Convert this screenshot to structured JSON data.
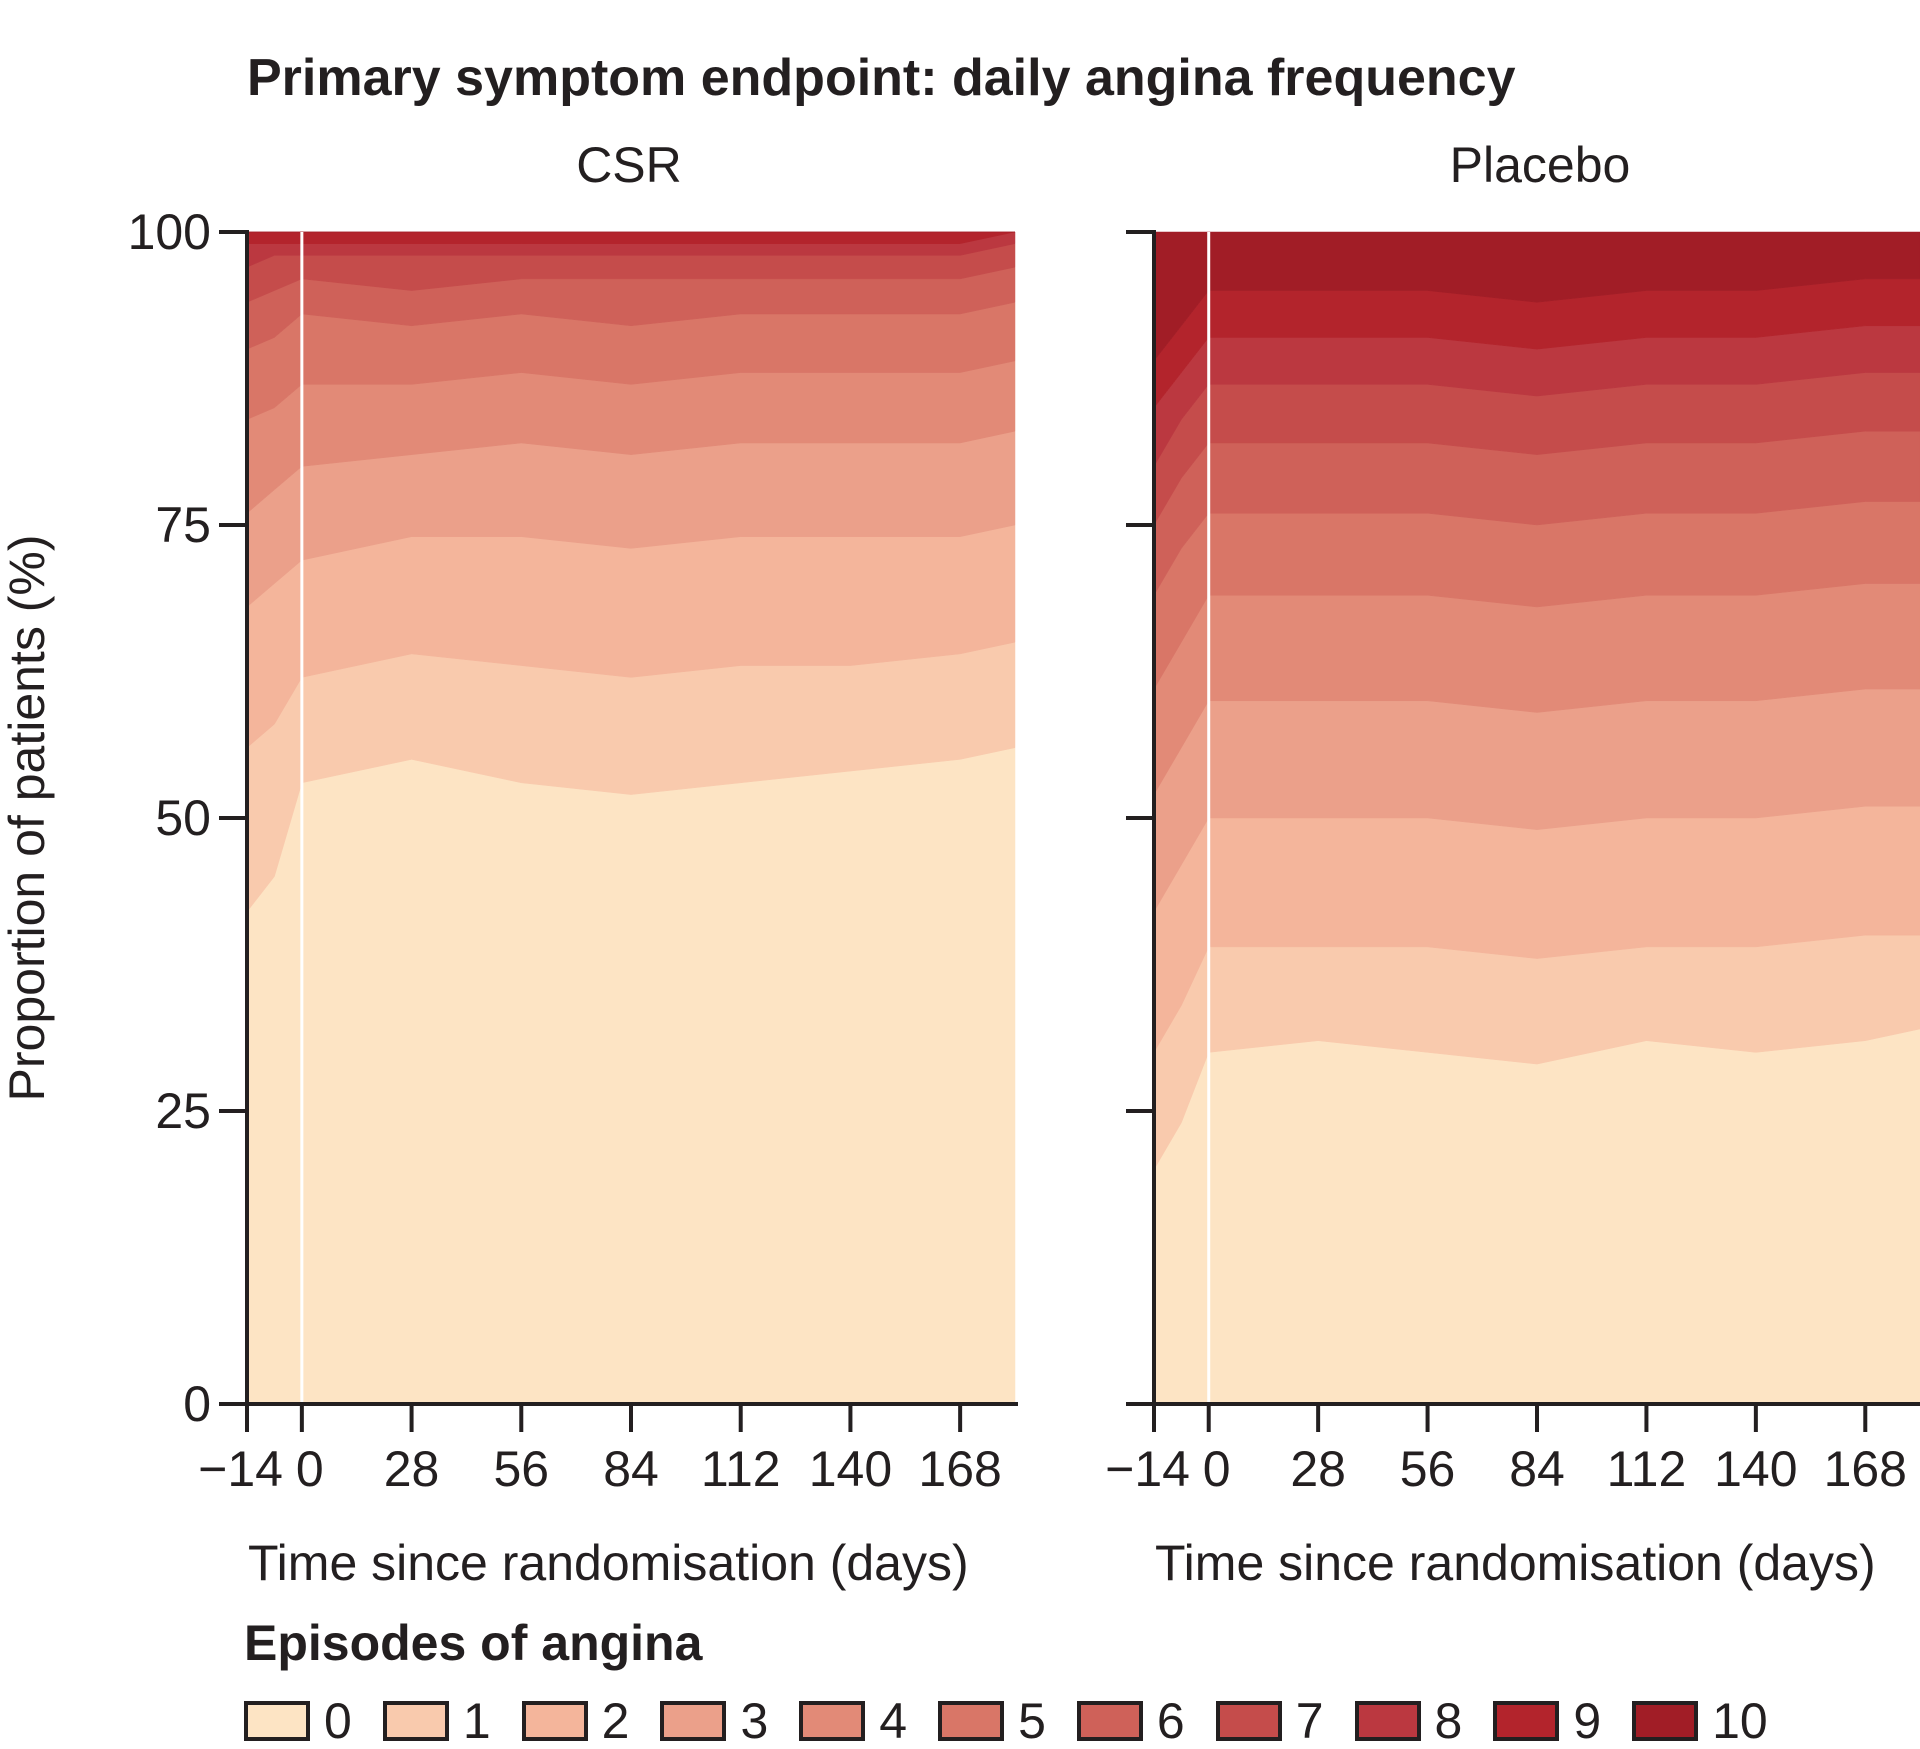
{
  "figure_title": "Primary symptom endpoint: daily angina frequency",
  "legend": {
    "title": "Episodes of angina",
    "levels": [
      "0",
      "1",
      "2",
      "3",
      "4",
      "5",
      "6",
      "7",
      "8",
      "9",
      "10"
    ],
    "colors": [
      "#fde4c4",
      "#f9caad",
      "#f4b59b",
      "#eba08a",
      "#e28a77",
      "#d97667",
      "#cf6159",
      "#c54c4b",
      "#bb3840",
      "#b3242c",
      "#a11d26"
    ]
  },
  "chart_data": [
    {
      "type": "area",
      "panel": "CSR",
      "title": "CSR",
      "xlabel": "Time since randomisation (days)",
      "ylabel": "Proportion of patients (%)",
      "xlim": [
        -14,
        182
      ],
      "ylim": [
        0,
        100
      ],
      "xticks": [
        -14,
        0,
        28,
        56,
        84,
        112,
        140,
        168
      ],
      "xtick_labels": [
        "−14",
        "0",
        "28",
        "56",
        "84",
        "112",
        "140",
        "168"
      ],
      "yticks": [
        0,
        25,
        50,
        75,
        100
      ],
      "grid": false,
      "stacked": true,
      "x": [
        -14,
        -7,
        0,
        28,
        56,
        84,
        112,
        140,
        168,
        182
      ],
      "series": [
        {
          "name": "0",
          "values": [
            42,
            45,
            53,
            55,
            53,
            52,
            53,
            54,
            55,
            56
          ]
        },
        {
          "name": "1",
          "values": [
            14,
            13,
            9,
            9,
            10,
            10,
            10,
            9,
            9,
            9
          ]
        },
        {
          "name": "2",
          "values": [
            12,
            12,
            10,
            10,
            11,
            11,
            11,
            11,
            10,
            10
          ]
        },
        {
          "name": "3",
          "values": [
            8,
            8,
            8,
            7,
            8,
            8,
            8,
            8,
            8,
            8
          ]
        },
        {
          "name": "4",
          "values": [
            8,
            7,
            7,
            6,
            6,
            6,
            6,
            6,
            6,
            6
          ]
        },
        {
          "name": "5",
          "values": [
            6,
            6,
            6,
            5,
            5,
            5,
            5,
            5,
            5,
            5
          ]
        },
        {
          "name": "6",
          "values": [
            4,
            4,
            3,
            3,
            3,
            4,
            3,
            3,
            3,
            3
          ]
        },
        {
          "name": "7",
          "values": [
            3,
            3,
            2,
            3,
            2,
            2,
            2,
            2,
            2,
            2
          ]
        },
        {
          "name": "8",
          "values": [
            2,
            1,
            1,
            1,
            1,
            1,
            1,
            1,
            1,
            1
          ]
        },
        {
          "name": "9",
          "values": [
            1,
            1,
            1,
            1,
            1,
            1,
            1,
            1,
            1,
            0
          ]
        },
        {
          "name": "10",
          "values": [
            0,
            0,
            0,
            0,
            0,
            0,
            0,
            0,
            0,
            0
          ]
        }
      ]
    },
    {
      "type": "area",
      "panel": "Placebo",
      "title": "Placebo",
      "xlabel": "Time since randomisation (days)",
      "ylabel": "",
      "xlim": [
        -14,
        182
      ],
      "ylim": [
        0,
        100
      ],
      "xticks": [
        -14,
        0,
        28,
        56,
        84,
        112,
        140,
        168
      ],
      "xtick_labels": [
        "−14",
        "0",
        "28",
        "56",
        "84",
        "112",
        "140",
        "168"
      ],
      "yticks": [
        0,
        25,
        50,
        75,
        100
      ],
      "grid": false,
      "stacked": true,
      "x": [
        -14,
        -7,
        0,
        28,
        56,
        84,
        112,
        140,
        168,
        182
      ],
      "series": [
        {
          "name": "0",
          "values": [
            20,
            24,
            30,
            31,
            30,
            29,
            31,
            30,
            31,
            32
          ]
        },
        {
          "name": "1",
          "values": [
            10,
            10,
            9,
            8,
            9,
            9,
            8,
            9,
            9,
            8
          ]
        },
        {
          "name": "2",
          "values": [
            12,
            12,
            11,
            11,
            11,
            11,
            11,
            11,
            11,
            11
          ]
        },
        {
          "name": "3",
          "values": [
            10,
            10,
            10,
            10,
            10,
            10,
            10,
            10,
            10,
            10
          ]
        },
        {
          "name": "4",
          "values": [
            9,
            9,
            9,
            9,
            9,
            9,
            9,
            9,
            9,
            9
          ]
        },
        {
          "name": "5",
          "values": [
            8,
            8,
            7,
            7,
            7,
            7,
            7,
            7,
            7,
            7
          ]
        },
        {
          "name": "6",
          "values": [
            6,
            6,
            6,
            6,
            6,
            6,
            6,
            6,
            6,
            6
          ]
        },
        {
          "name": "7",
          "values": [
            5,
            5,
            5,
            5,
            5,
            5,
            5,
            5,
            5,
            5
          ]
        },
        {
          "name": "8",
          "values": [
            5,
            4,
            4,
            4,
            4,
            4,
            4,
            4,
            4,
            4
          ]
        },
        {
          "name": "9",
          "values": [
            4,
            4,
            4,
            4,
            4,
            4,
            4,
            4,
            4,
            4
          ]
        },
        {
          "name": "10",
          "values": [
            11,
            8,
            5,
            5,
            5,
            6,
            5,
            5,
            4,
            4
          ]
        }
      ]
    }
  ]
}
